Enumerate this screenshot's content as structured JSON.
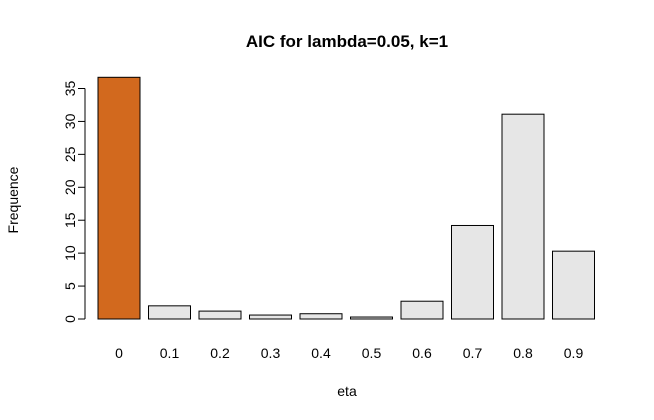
{
  "chart_data": {
    "type": "bar",
    "title": "AIC for lambda=0.05, k=1",
    "xlabel": "eta",
    "ylabel": "Frequence",
    "categories": [
      "0",
      "0.1",
      "0.2",
      "0.3",
      "0.4",
      "0.5",
      "0.6",
      "0.7",
      "0.8",
      "0.9"
    ],
    "values": [
      36.7,
      2.0,
      1.2,
      0.6,
      0.8,
      0.3,
      2.7,
      14.2,
      31.1,
      10.3
    ],
    "bar_colors": [
      "#D2691E",
      "#E6E6E6",
      "#E6E6E6",
      "#E6E6E6",
      "#E6E6E6",
      "#E6E6E6",
      "#E6E6E6",
      "#E6E6E6",
      "#E6E6E6",
      "#E6E6E6"
    ],
    "y_ticks": [
      0,
      5,
      10,
      15,
      20,
      25,
      30,
      35
    ],
    "ylim": [
      0,
      37
    ],
    "grid": false
  }
}
